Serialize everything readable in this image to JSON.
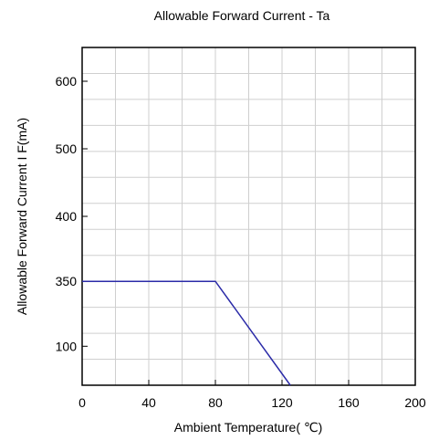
{
  "chart_data": {
    "type": "line",
    "title": "Allowable Forward Current - Ta",
    "xlabel": "Ambient Temperature( ℃)",
    "ylabel": "Allowable Forward Current I F(mA)",
    "xlim": [
      0,
      200
    ],
    "x_ticks": [
      0,
      40,
      80,
      120,
      160,
      200
    ],
    "x_tick_labels": [
      "0",
      "40",
      "80",
      "120",
      "160",
      "200"
    ],
    "y_ticks": [
      {
        "label": "600",
        "frac": 0.1
      },
      {
        "label": "500",
        "frac": 0.3
      },
      {
        "label": "400",
        "frac": 0.5
      },
      {
        "label": "350",
        "frac": 0.6923
      },
      {
        "label": "100",
        "frac": 0.8846
      }
    ],
    "grid": true,
    "grid_x_step": 20,
    "grid_y_count": 13,
    "series": [
      {
        "color": "#2b2ba8",
        "points": [
          {
            "x": 0,
            "y": 350
          },
          {
            "x": 80,
            "y": 350
          },
          {
            "x": 125,
            "y": 0
          }
        ]
      }
    ]
  }
}
